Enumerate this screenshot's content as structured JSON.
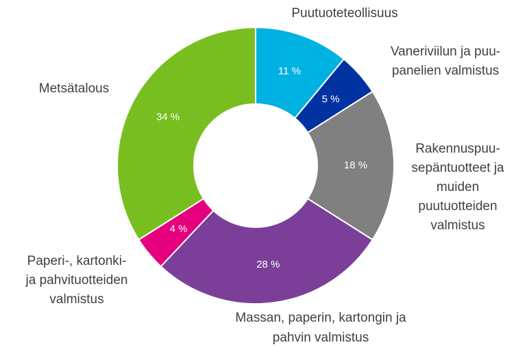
{
  "chart_data": {
    "type": "donut",
    "categories": [
      [
        "Puutuoteteollisuus"
      ],
      [
        "Vaneriviilun ja puu-",
        "panelien valmistus"
      ],
      [
        "Rakennuspuu-",
        "sepäntuotteet ja",
        "muiden",
        "puutuotteiden",
        "valmistus"
      ],
      [
        "Massan, paperin, kartongin ja",
        "pahvin valmistus"
      ],
      [
        "Paperi-, kartonki-",
        "ja pahvituotteiden",
        "valmistus"
      ],
      [
        "Metsätalous"
      ]
    ],
    "values": [
      11,
      5,
      18,
      28,
      4,
      34
    ],
    "value_labels": [
      "11 %",
      "5 %",
      "18 %",
      "28 %",
      "4 %",
      "34 %"
    ],
    "colors": [
      "#00b2e2",
      "#0033a1",
      "#808080",
      "#7b3f99",
      "#e5007d",
      "#78be21"
    ]
  }
}
